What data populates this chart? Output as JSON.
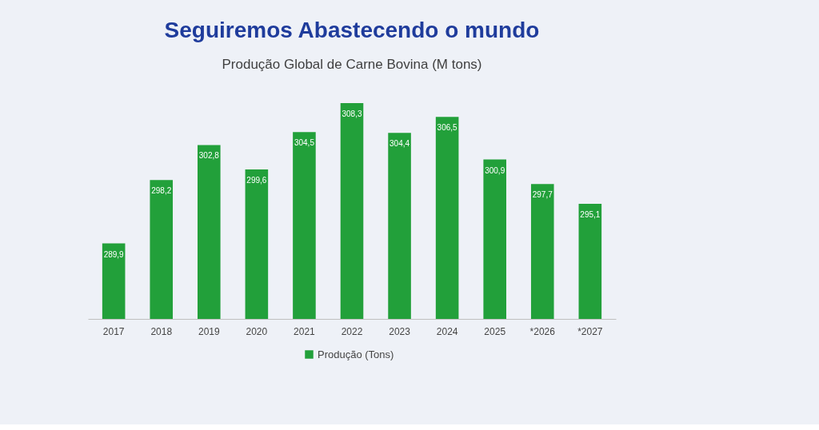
{
  "chart_data": {
    "type": "bar",
    "title": "Seguiremos Abastecendo o mundo",
    "subtitle": "Produção Global de Carne Bovina (M tons)",
    "categories": [
      "2017",
      "2018",
      "2019",
      "2020",
      "2021",
      "2022",
      "2023",
      "2024",
      "2025",
      "*2026",
      "*2027"
    ],
    "series": [
      {
        "name": "Produção (Tons)",
        "color": "#22a03a",
        "values": [
          289.9,
          298.2,
          302.8,
          299.6,
          304.5,
          308.3,
          304.4,
          306.5,
          300.9,
          297.7,
          295.1
        ],
        "value_labels": [
          "289,9",
          "298,2",
          "302,8",
          "299,6",
          "304,5",
          "308,3",
          "304,4",
          "306,5",
          "300,9",
          "297,7",
          "295,1"
        ]
      }
    ],
    "ylim": [
      280,
      308.3
    ],
    "tick_labels": "x",
    "grid": false,
    "legend": "bottom"
  }
}
